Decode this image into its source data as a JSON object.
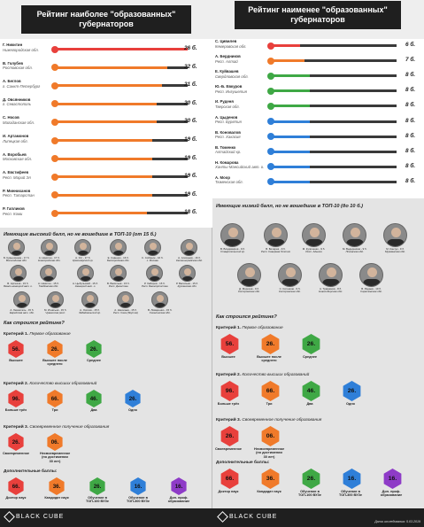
{
  "titles": {
    "left": "Рейтинг наиболее \"образованных\" губернаторов",
    "right": "Рейтинг наименее \"образованных\" губернаторов"
  },
  "chart_data": [
    {
      "type": "bar",
      "title": "Рейтинг наиболее \"образованных\" губернаторов",
      "xlim": [
        0,
        26
      ],
      "categories": [
        "Г. Никитин",
        "В. Голубев",
        "А. Беглов",
        "Д. Овсянников",
        "С. Носов",
        "И. Артамонов",
        "А. Воробьев",
        "А. Евстифеев",
        "Р. Минниханов",
        "Р. Гапликов"
      ],
      "regions": [
        "Нижегородская обл.",
        "Ростовская обл.",
        "г. Санкт-Петербург",
        "г. Севастополь",
        "Магаданская обл.",
        "Липецкая обл.",
        "Московская обл.",
        "Респ. Марий Эл",
        "Респ. Татарстан",
        "Респ. Коми"
      ],
      "values": [
        26,
        22,
        21,
        20,
        20,
        19,
        19,
        19,
        19,
        18
      ],
      "labels": [
        "26 б.",
        "22 б.",
        "21 б.",
        "20 б.",
        "20 б.",
        "19 б.",
        "19 б.",
        "19 б.",
        "19 б.",
        "18 б."
      ],
      "colors": [
        "#e8403c",
        "#f07a2a",
        "#f07a2a",
        "#f07a2a",
        "#f07a2a",
        "#f07a2a",
        "#f07a2a",
        "#f07a2a",
        "#f07a2a",
        "#f07a2a"
      ]
    },
    {
      "type": "bar",
      "title": "Рейтинг наименее \"образованных\" губернаторов",
      "xlim": [
        0,
        26
      ],
      "categories": [
        "С. Цивилев",
        "А. Бердников",
        "Е. Куйвашев",
        "Ю.-Б. Евкуров",
        "И. Руденя",
        "А. Цыденов",
        "В. Коновалов",
        "В. Томенко",
        "Н. Комарова",
        "А. Моор"
      ],
      "regions": [
        "Кемеровская обл.",
        "Респ. Алтай",
        "Свердловская обл.",
        "Респ. Ингушетия",
        "Тверская обл.",
        "Респ. Бурятия",
        "Респ. Хакасия",
        "Алтайский кр.",
        "Ханты-Мансийский авт. о.",
        "Тюменская обл."
      ],
      "values": [
        6,
        7,
        8,
        8,
        8,
        8,
        8,
        8,
        8,
        8
      ],
      "labels": [
        "6 б.",
        "7 б.",
        "8 б.",
        "8 б.",
        "8 б.",
        "8 б.",
        "8 б.",
        "8 б.",
        "8 б.",
        "8 б."
      ],
      "colors": [
        "#e8403c",
        "#f07a2a",
        "#3fa845",
        "#3fa845",
        "#3fa845",
        "#2f7fd8",
        "#2f7fd8",
        "#2f7fd8",
        "#2f7fd8",
        "#2f7fd8"
      ]
    }
  ],
  "high_section": {
    "title": "Имеющие высокий балл, но не вошедшие в ТОП-10 (от 15 б.)",
    "people": [
      [
        "Б. Кувышинкин - 17 б.",
        "Вологодская обл."
      ],
      [
        "А. Никитин - 17 б.",
        "Новгородская обл."
      ],
      [
        "А. Усс - 17 б.",
        "Красноярский кр."
      ],
      [
        "Е. Савенко - 16 б.",
        "Белгородская обл."
      ],
      [
        "С. Собянин - 16 б.",
        "г. Москва"
      ],
      [
        "А. Алиханов - 16 б.",
        "Калининградская обл."
      ],
      [
        "В. Артюхов - 15 б.",
        "Ямало-ненецкий авт. о."
      ],
      [
        "А. Никитин - 15 б.",
        "Тамбовская обл."
      ],
      [
        "А. Цыбульский - 15 б.",
        "Ненецкий авт. о."
      ],
      [
        "В. Васильев - 15 б.",
        "Респ. Дагестан"
      ],
      [
        "Р. Хабиров - 15 б.",
        "Респ. Башкортостан"
      ],
      [
        "Р. Васильев - 15 б.",
        "Курганская обл."
      ],
      [
        "А. Левинталь - 15 б.",
        "Еврейская авт. обл."
      ],
      [
        "М. Игнатьев - 15 б.",
        "Чувашская респ."
      ],
      [
        "А. Осипов - 15 б.",
        "Забайкальский кр."
      ],
      [
        "А. Николаев - 15 б.",
        "Респ. Саха (Якутия)"
      ],
      [
        "В. Лимаренко - 15 б.",
        "Сахалинская обл."
      ]
    ]
  },
  "low_section": {
    "title": "Имеющие низкий балл, но не вошедшие в ТОП-10 (до 10 б.)",
    "people": [
      [
        "В. Владимиров - 9 б.",
        "Ставропольский кр."
      ],
      [
        "В. Бичарев - 9 б.",
        "Респ. Северная Осетия"
      ],
      [
        "М. Куличенко - 9 б.",
        "Респ. Адыгея"
      ],
      [
        "М. Ведерников - 9 б.",
        "Псковская обл."
      ],
      [
        "М. Кончук - 9 б.",
        "Мурманская обл."
      ],
      [
        "Д. Морозов - 9 б.",
        "Костромская обл."
      ],
      [
        "С. Ситников - 9 б.",
        "Костромская обл."
      ],
      [
        "А. Травников - 8 б.",
        "Новосибирская обл."
      ],
      [
        "В. Радаев - 10 б.",
        "Саратовская обл."
      ]
    ]
  },
  "method": {
    "title": "Как строился рейтинг?",
    "c1": {
      "label": "Критерий 1.",
      "text": "Первое образование",
      "items": [
        [
          "56.",
          "Высшее",
          "#e8403c"
        ],
        [
          "26.",
          "Высшее после среднего",
          "#f07a2a"
        ],
        [
          "26.",
          "Среднее",
          "#3fa845"
        ]
      ]
    },
    "c2": {
      "label": "Критерий 2.",
      "text": "Количество высших образований",
      "items": [
        [
          "96.",
          "Больше трёх",
          "#e8403c"
        ],
        [
          "66.",
          "Три",
          "#f07a2a"
        ],
        [
          "46.",
          "Два",
          "#3fa845"
        ],
        [
          "26.",
          "Одно",
          "#2f7fd8"
        ]
      ]
    },
    "c3": {
      "label": "Критерий 3.",
      "text": "Своевременное получение образования",
      "items": [
        [
          "26.",
          "Своевременное",
          "#e8403c"
        ],
        [
          "06.",
          "Несвоевременное (по достижении 30 лет)",
          "#f07a2a"
        ]
      ]
    },
    "extra": {
      "label": "Дополнительные баллы:",
      "items": [
        [
          "66.",
          "Доктор наук",
          "#e8403c"
        ],
        [
          "36.",
          "Кандидат наук",
          "#f07a2a"
        ],
        [
          "26.",
          "Обучение в ТОП-100 ВУЗе",
          "#3fa845"
        ],
        [
          "16.",
          "Обучение в ТОП-300 ВУЗе",
          "#2f7fd8"
        ],
        [
          "16.",
          "Доп. проф. образование",
          "#8e3bc7"
        ]
      ]
    }
  },
  "footer": {
    "brand": "BLACK CUBE",
    "date": "Дата исследования: 5.03.2019"
  }
}
